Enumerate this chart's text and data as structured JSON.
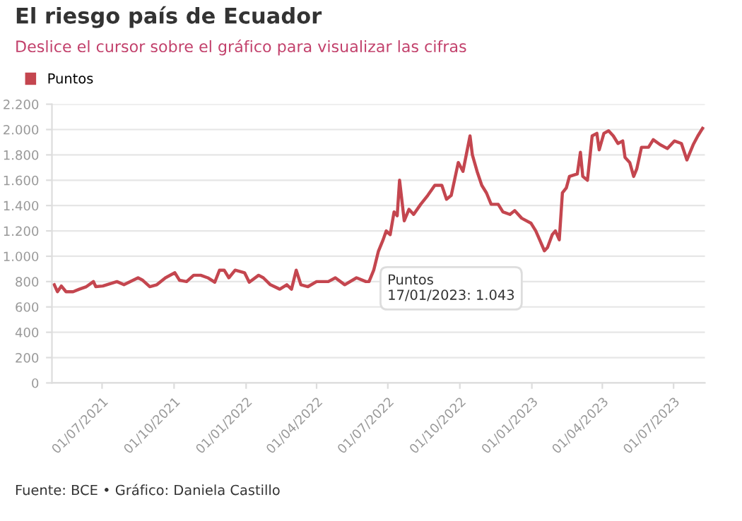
{
  "chart_data": {
    "type": "line",
    "title": "El riesgo país de Ecuador",
    "subtitle": "Deslice el cursor sobre el gráfico para visualizar las cifras",
    "series": [
      {
        "name": "Puntos",
        "color": "#c4464f",
        "x": [
          "2021-05-01",
          "2021-05-05",
          "2021-05-10",
          "2021-05-16",
          "2021-05-25",
          "2021-06-02",
          "2021-06-11",
          "2021-06-20",
          "2021-06-23",
          "2021-07-02",
          "2021-07-20",
          "2021-07-29",
          "2021-08-16",
          "2021-08-22",
          "2021-08-31",
          "2021-09-09",
          "2021-09-20",
          "2021-10-02",
          "2021-10-08",
          "2021-10-17",
          "2021-10-26",
          "2021-11-04",
          "2021-11-13",
          "2021-11-22",
          "2021-11-28",
          "2021-12-04",
          "2021-12-10",
          "2021-12-18",
          "2021-12-30",
          "2022-01-05",
          "2022-01-17",
          "2022-01-23",
          "2022-02-01",
          "2022-02-13",
          "2022-02-22",
          "2022-02-28",
          "2022-03-06",
          "2022-03-12",
          "2022-03-21",
          "2022-04-01",
          "2022-04-16",
          "2022-04-25",
          "2022-05-07",
          "2022-05-22",
          "2022-06-03",
          "2022-06-07",
          "2022-06-13",
          "2022-06-19",
          "2022-06-25",
          "2022-06-29",
          "2022-07-04",
          "2022-07-09",
          "2022-07-13",
          "2022-07-16",
          "2022-07-22",
          "2022-07-28",
          "2022-08-03",
          "2022-08-12",
          "2022-08-21",
          "2022-08-30",
          "2022-09-08",
          "2022-09-14",
          "2022-09-20",
          "2022-09-29",
          "2022-10-05",
          "2022-10-14",
          "2022-10-17",
          "2022-10-23",
          "2022-10-29",
          "2022-11-04",
          "2022-11-10",
          "2022-11-19",
          "2022-11-25",
          "2022-12-04",
          "2022-12-10",
          "2022-12-19",
          "2022-12-31",
          "2023-01-06",
          "2023-01-17",
          "2023-01-21",
          "2023-01-27",
          "2023-01-31",
          "2023-02-05",
          "2023-02-09",
          "2023-02-14",
          "2023-02-18",
          "2023-02-28",
          "2023-03-04",
          "2023-03-07",
          "2023-03-13",
          "2023-03-19",
          "2023-03-25",
          "2023-03-28",
          "2023-04-03",
          "2023-04-09",
          "2023-04-15",
          "2023-04-21",
          "2023-04-27",
          "2023-04-30",
          "2023-05-06",
          "2023-05-11",
          "2023-05-15",
          "2023-05-21",
          "2023-05-30",
          "2023-06-05",
          "2023-06-14",
          "2023-06-23",
          "2023-07-02",
          "2023-07-11",
          "2023-07-18",
          "2023-07-26",
          "2023-08-01",
          "2023-08-07"
        ],
        "values": [
          775,
          720,
          765,
          720,
          720,
          740,
          760,
          800,
          760,
          765,
          800,
          775,
          830,
          810,
          760,
          775,
          830,
          870,
          810,
          800,
          850,
          850,
          830,
          795,
          890,
          890,
          830,
          890,
          870,
          795,
          850,
          830,
          775,
          740,
          775,
          740,
          890,
          775,
          760,
          800,
          800,
          830,
          775,
          830,
          800,
          800,
          890,
          1040,
          1130,
          1200,
          1170,
          1350,
          1320,
          1600,
          1280,
          1370,
          1330,
          1410,
          1480,
          1560,
          1560,
          1450,
          1480,
          1740,
          1670,
          1950,
          1800,
          1670,
          1560,
          1500,
          1410,
          1410,
          1350,
          1330,
          1360,
          1300,
          1260,
          1200,
          1043,
          1070,
          1170,
          1200,
          1130,
          1500,
          1540,
          1630,
          1650,
          1820,
          1630,
          1600,
          1950,
          1970,
          1840,
          1970,
          1990,
          1950,
          1890,
          1910,
          1780,
          1740,
          1630,
          1690,
          1860,
          1860,
          1920,
          1880,
          1850,
          1910,
          1890,
          1760,
          1880,
          1950,
          2010
        ]
      }
    ],
    "xlim": [
      "2021-04-28",
      "2023-08-10"
    ],
    "xticks": [
      {
        "value": "2021-07-01",
        "label": "01/07/2021"
      },
      {
        "value": "2021-10-01",
        "label": "01/10/2021"
      },
      {
        "value": "2022-01-01",
        "label": "01/01/2022"
      },
      {
        "value": "2022-04-01",
        "label": "01/04/2022"
      },
      {
        "value": "2022-07-01",
        "label": "01/07/2022"
      },
      {
        "value": "2022-10-01",
        "label": "01/10/2022"
      },
      {
        "value": "2023-01-01",
        "label": "01/01/2023"
      },
      {
        "value": "2023-04-01",
        "label": "01/04/2023"
      },
      {
        "value": "2023-07-01",
        "label": "01/07/2023"
      }
    ],
    "ylim": [
      0,
      2200
    ],
    "yticks": [
      0,
      200,
      400,
      600,
      800,
      {
        "value": 1000,
        "label": "1.000"
      },
      {
        "value": 1200,
        "label": "1.200"
      },
      {
        "value": 1400,
        "label": "1.400"
      },
      {
        "value": 1600,
        "label": "1.600"
      },
      {
        "value": 1800,
        "label": "1.800"
      },
      {
        "value": 2000,
        "label": "2.000"
      },
      {
        "value": 2200,
        "label": "2.200"
      }
    ],
    "grid": "y",
    "legend": "top left",
    "marker": "none",
    "line_style": "solid",
    "annotations": [
      {
        "text": "Puntos\n17/01/2023: 1.043",
        "x": "2023-01-17",
        "y": 1043
      },
      "Fuente: BCE • Gráfico: Daniela Castillo"
    ]
  }
}
